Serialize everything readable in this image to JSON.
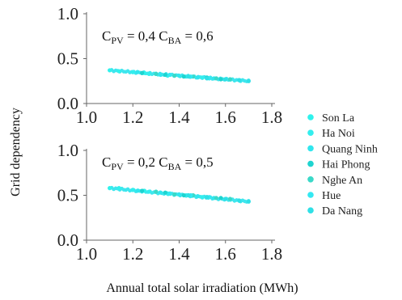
{
  "chart_data": [
    {
      "type": "scatter",
      "title": "",
      "xlabel": "Annual total solar irradiation (MWh)",
      "ylabel": "Grid dependency",
      "xlim": [
        1.0,
        1.8
      ],
      "ylim": [
        0.0,
        1.0
      ],
      "xticks": [
        "1.0",
        "1.2",
        "1.4",
        "1.6",
        "1.8"
      ],
      "yticks": [
        "0.0",
        "0.5",
        "1.0"
      ],
      "annotation": {
        "p1": "C",
        "s1": "PV",
        "v1": " = 0,4",
        "p2": "C",
        "s2": "BA",
        "v2": " = 0,6"
      },
      "trend": {
        "x_start": 1.1,
        "y_start": 0.37,
        "x_end": 1.7,
        "y_end": 0.25
      },
      "series": [
        {
          "name": "Son La",
          "x": [
            1.1,
            1.14,
            1.2,
            1.25,
            1.3
          ],
          "y": [
            0.37,
            0.36,
            0.35,
            0.34,
            0.33
          ]
        },
        {
          "name": "Ha Noi",
          "x": [
            1.2,
            1.27,
            1.35,
            1.43,
            1.5
          ],
          "y": [
            0.35,
            0.33,
            0.31,
            0.3,
            0.29
          ]
        },
        {
          "name": "Quang Ninh",
          "x": [
            1.22,
            1.32,
            1.4,
            1.48,
            1.55
          ],
          "y": [
            0.35,
            0.32,
            0.31,
            0.29,
            0.28
          ]
        },
        {
          "name": "Hai Phong",
          "x": [
            1.24,
            1.34,
            1.42,
            1.52,
            1.58
          ],
          "y": [
            0.34,
            0.32,
            0.3,
            0.29,
            0.27
          ]
        },
        {
          "name": "Nghe An",
          "x": [
            1.3,
            1.38,
            1.46,
            1.56,
            1.62
          ],
          "y": [
            0.33,
            0.31,
            0.3,
            0.28,
            0.27
          ]
        },
        {
          "name": "Hue",
          "x": [
            1.36,
            1.45,
            1.53,
            1.6,
            1.66
          ],
          "y": [
            0.32,
            0.3,
            0.28,
            0.27,
            0.26
          ]
        },
        {
          "name": "Da Nang",
          "x": [
            1.44,
            1.52,
            1.6,
            1.66,
            1.7
          ],
          "y": [
            0.3,
            0.28,
            0.27,
            0.26,
            0.25
          ]
        }
      ]
    },
    {
      "type": "scatter",
      "title": "",
      "xlabel": "Annual total solar irradiation (MWh)",
      "ylabel": "Grid dependency",
      "xlim": [
        1.0,
        1.8
      ],
      "ylim": [
        0.0,
        1.0
      ],
      "xticks": [
        "1.0",
        "1.2",
        "1.4",
        "1.6",
        "1.8"
      ],
      "yticks": [
        "0.0",
        "0.5",
        "1.0"
      ],
      "annotation": {
        "p1": "C",
        "s1": "PV",
        "v1": " = 0,2",
        "p2": "C",
        "s2": "BA",
        "v2": " = 0,5"
      },
      "trend": {
        "x_start": 1.1,
        "y_start": 0.58,
        "x_end": 1.7,
        "y_end": 0.43
      },
      "series": [
        {
          "name": "Son La",
          "x": [
            1.1,
            1.14,
            1.2,
            1.25,
            1.3
          ],
          "y": [
            0.58,
            0.58,
            0.56,
            0.55,
            0.54
          ]
        },
        {
          "name": "Ha Noi",
          "x": [
            1.2,
            1.27,
            1.35,
            1.43,
            1.5
          ],
          "y": [
            0.56,
            0.54,
            0.52,
            0.5,
            0.48
          ]
        },
        {
          "name": "Quang Ninh",
          "x": [
            1.22,
            1.32,
            1.4,
            1.48,
            1.55
          ],
          "y": [
            0.55,
            0.53,
            0.51,
            0.49,
            0.47
          ]
        },
        {
          "name": "Hai Phong",
          "x": [
            1.24,
            1.34,
            1.42,
            1.52,
            1.58
          ],
          "y": [
            0.55,
            0.53,
            0.5,
            0.48,
            0.47
          ]
        },
        {
          "name": "Nghe An",
          "x": [
            1.3,
            1.38,
            1.46,
            1.56,
            1.62
          ],
          "y": [
            0.54,
            0.51,
            0.5,
            0.47,
            0.46
          ]
        },
        {
          "name": "Hue",
          "x": [
            1.36,
            1.45,
            1.53,
            1.6,
            1.66
          ],
          "y": [
            0.52,
            0.5,
            0.48,
            0.46,
            0.44
          ]
        },
        {
          "name": "Da Nang",
          "x": [
            1.44,
            1.52,
            1.6,
            1.66,
            1.7
          ],
          "y": [
            0.5,
            0.48,
            0.46,
            0.44,
            0.43
          ]
        }
      ]
    }
  ],
  "legend": {
    "placement": "right",
    "items": [
      {
        "label": "Son La",
        "color": "#2ff2ec"
      },
      {
        "label": "Ha Noi",
        "color": "#33eeee"
      },
      {
        "label": "Quang Ninh",
        "color": "#30e6ee"
      },
      {
        "label": "Hai Phong",
        "color": "#1ed4d0"
      },
      {
        "label": "Nghe An",
        "color": "#3ad9c8"
      },
      {
        "label": "Hue",
        "color": "#33e8f2"
      },
      {
        "label": "Da Nang",
        "color": "#2fe0e6"
      }
    ]
  }
}
